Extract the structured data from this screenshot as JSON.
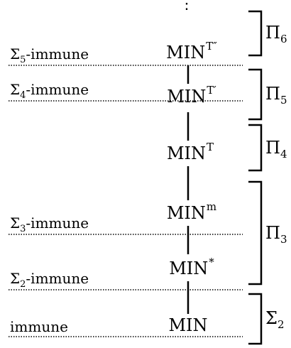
{
  "vertical_ellipsis": "⋮",
  "immune_levels": [
    {
      "sigma": "Σ",
      "sub": "5",
      "text": "-immune"
    },
    {
      "sigma": "Σ",
      "sub": "4",
      "text": "-immune"
    },
    {
      "sigma": "Σ",
      "sub": "3",
      "text": "-immune"
    },
    {
      "sigma": "Σ",
      "sub": "2",
      "text": "-immune"
    },
    {
      "sigma": "",
      "sub": "",
      "text": "immune"
    }
  ],
  "nodes": [
    {
      "base": "MIN",
      "sup": "T″"
    },
    {
      "base": "MIN",
      "sup": "T′"
    },
    {
      "base": "MIN",
      "sup": "T"
    },
    {
      "base": "MIN",
      "sup": "m"
    },
    {
      "base": "MIN",
      "sup": "*"
    },
    {
      "base": "MIN",
      "sup": ""
    }
  ],
  "brackets": [
    {
      "symbol": "Π",
      "sub": "6"
    },
    {
      "symbol": "Π",
      "sub": "5"
    },
    {
      "symbol": "Π",
      "sub": "4"
    },
    {
      "symbol": "Π",
      "sub": "3"
    },
    {
      "symbol": "Σ",
      "sub": "2"
    }
  ]
}
